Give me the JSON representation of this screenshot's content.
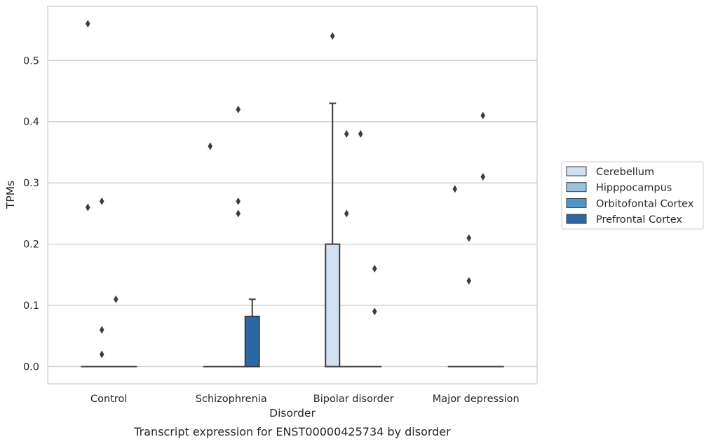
{
  "chart_data": {
    "type": "box",
    "caption": "Transcript expression for ENST00000425734 by disorder",
    "xlabel": "Disorder",
    "ylabel": "TPMs",
    "categories": [
      "Control",
      "Schizophrenia",
      "Bipolar disorder",
      "Major depression"
    ],
    "ylim": [
      -0.028,
      0.59
    ],
    "yticks": [
      0.0,
      0.1,
      0.2,
      0.3,
      0.4,
      0.5
    ],
    "ytick_labels": [
      "0.0",
      "0.1",
      "0.2",
      "0.3",
      "0.4",
      "0.5"
    ],
    "grid": "horizontal",
    "legend": {
      "placement": "right",
      "entries": [
        "Cerebellum",
        "Hipppocampus",
        "Orbitofontal Cortex",
        "Prefrontal Cortex"
      ]
    },
    "series": [
      {
        "name": "Cerebellum",
        "color": "#d0e1f2",
        "boxes": [
          {
            "q1": 0,
            "median": 0,
            "q3": 0,
            "whisker_low": 0,
            "whisker_high": 0,
            "outliers": [
              0.56,
              0.26
            ]
          },
          {
            "q1": 0,
            "median": 0,
            "q3": 0,
            "whisker_low": 0,
            "whisker_high": 0,
            "outliers": [
              0.36
            ]
          },
          {
            "q1": 0,
            "median": 0,
            "q3": 0.2,
            "whisker_low": 0,
            "whisker_high": 0.43,
            "outliers": [
              0.54
            ]
          },
          {
            "q1": 0,
            "median": 0,
            "q3": 0,
            "whisker_low": 0,
            "whisker_high": 0,
            "outliers": [
              0.29
            ]
          }
        ]
      },
      {
        "name": "Hipppocampus",
        "color": "#94c4df",
        "boxes": [
          {
            "q1": 0,
            "median": 0,
            "q3": 0,
            "whisker_low": 0,
            "whisker_high": 0,
            "outliers": [
              0.27,
              0.06,
              0.02
            ]
          },
          {
            "q1": 0,
            "median": 0,
            "q3": 0,
            "whisker_low": 0,
            "whisker_high": 0,
            "outliers": []
          },
          {
            "q1": 0,
            "median": 0,
            "q3": 0,
            "whisker_low": 0,
            "whisker_high": 0,
            "outliers": [
              0.38,
              0.25
            ]
          },
          {
            "q1": 0,
            "median": 0,
            "q3": 0,
            "whisker_low": 0,
            "whisker_high": 0,
            "outliers": [
              0.21,
              0.14
            ]
          }
        ]
      },
      {
        "name": "Orbitofontal Cortex",
        "color": "#4a98c9",
        "boxes": [
          {
            "q1": 0,
            "median": 0,
            "q3": 0,
            "whisker_low": 0,
            "whisker_high": 0,
            "outliers": [
              0.11
            ]
          },
          {
            "q1": 0,
            "median": 0,
            "q3": 0,
            "whisker_low": 0,
            "whisker_high": 0,
            "outliers": [
              0.42,
              0.27,
              0.25
            ]
          },
          {
            "q1": 0,
            "median": 0,
            "q3": 0,
            "whisker_low": 0,
            "whisker_high": 0,
            "outliers": [
              0.38
            ]
          },
          {
            "q1": 0,
            "median": 0,
            "q3": 0,
            "whisker_low": 0,
            "whisker_high": 0,
            "outliers": [
              0.41,
              0.31
            ]
          }
        ]
      },
      {
        "name": "Prefrontal Cortex",
        "color": "#2b68a6",
        "boxes": [
          {
            "q1": 0,
            "median": 0,
            "q3": 0,
            "whisker_low": 0,
            "whisker_high": 0,
            "outliers": []
          },
          {
            "q1": 0,
            "median": 0,
            "q3": 0.082,
            "whisker_low": 0,
            "whisker_high": 0.11,
            "outliers": []
          },
          {
            "q1": 0,
            "median": 0,
            "q3": 0,
            "whisker_low": 0,
            "whisker_high": 0,
            "outliers": [
              0.16,
              0.09
            ]
          },
          {
            "q1": 0,
            "median": 0,
            "q3": 0,
            "whisker_low": 0,
            "whisker_high": 0,
            "outliers": []
          }
        ]
      }
    ]
  }
}
